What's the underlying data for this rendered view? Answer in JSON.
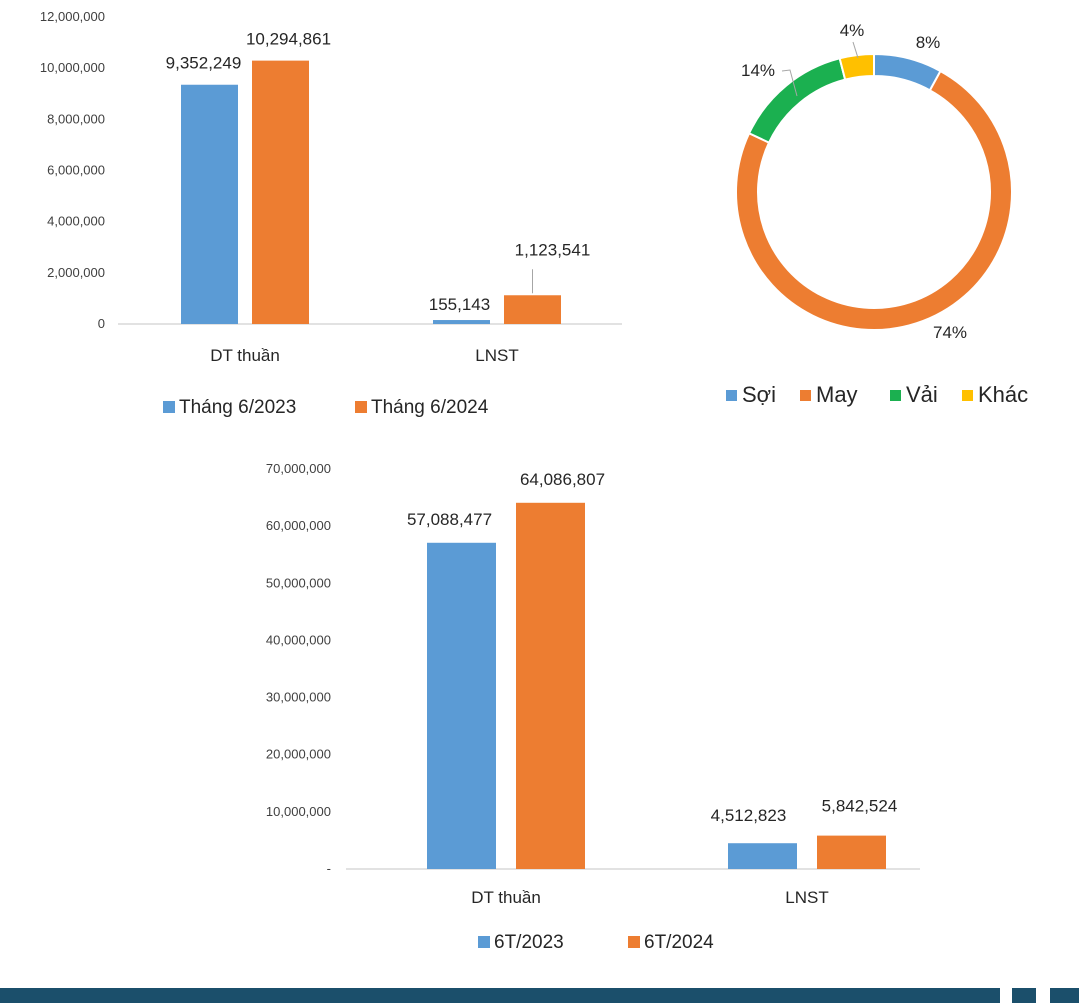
{
  "colors": {
    "blue": "#5b9bd5",
    "orange": "#ed7d31",
    "green": "#1bb050",
    "yellow": "#ffc000",
    "axis": "#d9d9d9",
    "footer": "#1b4f6b"
  },
  "chart_data": [
    {
      "type": "bar",
      "categories": [
        "DT thuần",
        "LNST"
      ],
      "series": [
        {
          "name": "Tháng 6/2023",
          "values": [
            9352249,
            155143
          ]
        },
        {
          "name": "Tháng 6/2024",
          "values": [
            10294861,
            1123541
          ]
        }
      ],
      "value_labels": [
        [
          "9,352,249",
          "155,143"
        ],
        [
          "10,294,861",
          "1,123,541"
        ]
      ],
      "ylim": [
        0,
        12000000
      ],
      "yticks": [
        0,
        2000000,
        4000000,
        6000000,
        8000000,
        10000000,
        12000000
      ],
      "ytick_labels": [
        "0",
        "2,000,000",
        "4,000,000",
        "6,000,000",
        "8,000,000",
        "10,000,000",
        "12,000,000"
      ],
      "legend": "bottom"
    },
    {
      "type": "pie",
      "variant": "doughnut",
      "labels": [
        "Sợi",
        "May",
        "Vải",
        "Khác"
      ],
      "values": [
        8,
        74,
        14,
        4
      ],
      "value_labels": [
        "8%",
        "74%",
        "14%",
        "4%"
      ],
      "legend": "bottom"
    },
    {
      "type": "bar",
      "categories": [
        "DT thuần",
        "LNST"
      ],
      "series": [
        {
          "name": "6T/2023",
          "values": [
            57088477,
            4512823
          ]
        },
        {
          "name": "6T/2024",
          "values": [
            64086807,
            5842524
          ]
        }
      ],
      "value_labels": [
        [
          "57,088,477",
          "4,512,823"
        ],
        [
          "64,086,807",
          "5,842,524"
        ]
      ],
      "ylim": [
        0,
        70000000
      ],
      "yticks": [
        0,
        10000000,
        20000000,
        30000000,
        40000000,
        50000000,
        60000000,
        70000000
      ],
      "ytick_labels": [
        "-",
        "10,000,000",
        "20,000,000",
        "30,000,000",
        "40,000,000",
        "50,000,000",
        "60,000,000",
        "70,000,000"
      ],
      "legend": "bottom"
    }
  ]
}
